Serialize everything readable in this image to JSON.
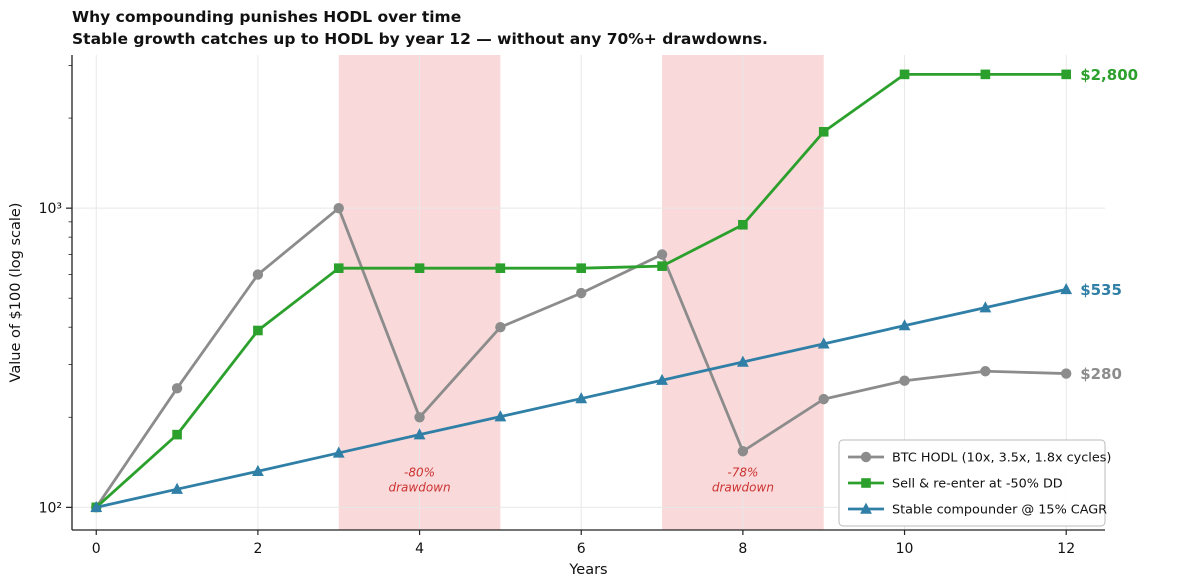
{
  "title": "Why compounding punishes HODL over time",
  "subtitle": "Stable growth catches up to HODL by year 12 — without any 70%+ drawdowns.",
  "chart_data": {
    "type": "line",
    "title": "Why compounding punishes HODL over time",
    "subtitle": "Stable growth catches up to HODL by year 12 — without any 70%+ drawdowns.",
    "xlabel": "Years",
    "ylabel": "Value of $100 (log scale)",
    "x": [
      0,
      1,
      2,
      3,
      4,
      5,
      6,
      7,
      8,
      9,
      10,
      11,
      12
    ],
    "xlim": [
      -0.3,
      12.48
    ],
    "ylim": [
      84,
      3250
    ],
    "x_ticks": [
      0,
      2,
      4,
      6,
      8,
      10,
      12
    ],
    "y_ticks": [
      {
        "value": 100,
        "label": "10²"
      },
      {
        "value": 1000,
        "label": "10³"
      }
    ],
    "y_minor_ticks": [
      200,
      300,
      400,
      500,
      600,
      700,
      800,
      900,
      2000,
      3000
    ],
    "grid_color": "#e8e8e8",
    "series": [
      {
        "name": "BTC HODL (10x, 3.5x, 1.8x cycles)",
        "color": "#8c8c8c",
        "marker": "circle",
        "values": [
          100,
          250,
          600,
          1000,
          200,
          400,
          520,
          700,
          154,
          230,
          265,
          285,
          280
        ],
        "end_label": "$280"
      },
      {
        "name": "Sell & re-enter at -50% DD",
        "color": "#2ca02c",
        "marker": "square",
        "values": [
          100,
          175,
          390,
          630,
          630,
          630,
          630,
          640,
          880,
          1800,
          2800,
          2800,
          2800
        ],
        "end_label": "$2,800"
      },
      {
        "name": "Stable compounder @ 15% CAGR",
        "color": "#2f7fa6",
        "marker": "triangle",
        "values": [
          100,
          115,
          132,
          152,
          175,
          201,
          231,
          266,
          306,
          352,
          405,
          465,
          535
        ],
        "end_label": "$535"
      }
    ],
    "shaded_regions": [
      {
        "x0": 3,
        "x1": 5,
        "color": "#f9d9d9",
        "label": "-80%\ndrawdown",
        "label_x": 4,
        "label_y": 123
      },
      {
        "x0": 7,
        "x1": 9,
        "color": "#f9d9d9",
        "label": "-78%\ndrawdown",
        "label_x": 8,
        "label_y": 123
      }
    ],
    "annotation_color": "#cc3333",
    "legend": {
      "position": "lower right",
      "entries": [
        "BTC HODL (10x, 3.5x, 1.8x cycles)",
        "Sell & re-enter at -50% DD",
        "Stable compounder @ 15% CAGR"
      ]
    }
  }
}
